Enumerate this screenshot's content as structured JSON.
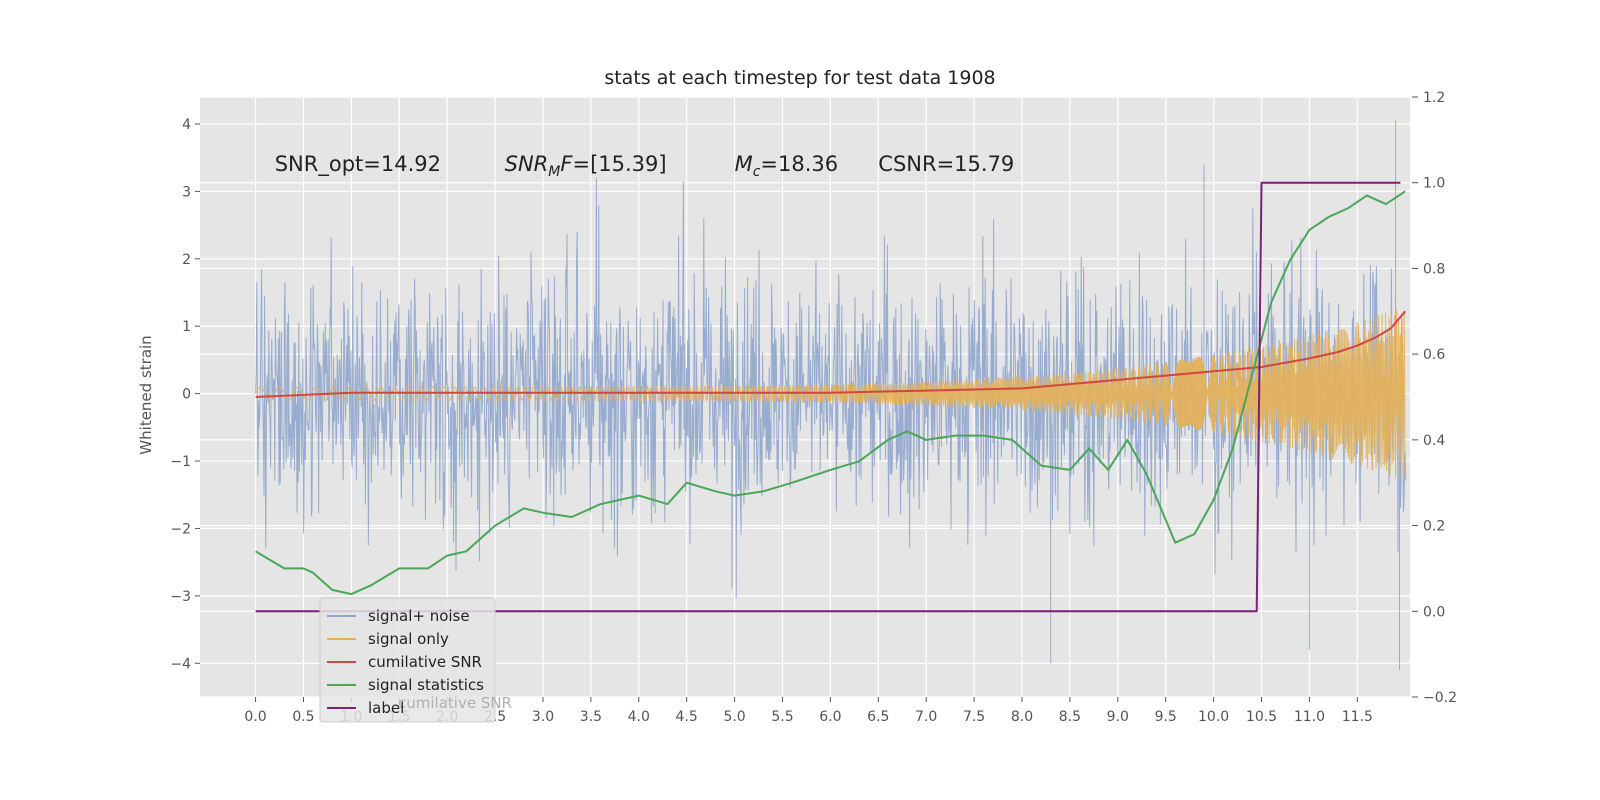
{
  "chart_data": {
    "type": "line",
    "title": "stats at each timestep for test data 1908",
    "xlabel": "",
    "ylabel": "Whitened strain",
    "y2label": "",
    "xlim": [
      -0.58,
      12.05
    ],
    "ylim": [
      -4.5,
      4.4
    ],
    "y2lim": [
      -0.2,
      1.2
    ],
    "x_ticks": [
      0.0,
      0.5,
      1.0,
      1.5,
      2.0,
      2.5,
      3.0,
      3.5,
      4.0,
      4.5,
      5.0,
      5.5,
      6.0,
      6.5,
      7.0,
      7.5,
      8.0,
      8.5,
      9.0,
      9.5,
      10.0,
      10.5,
      11.0,
      11.5
    ],
    "x_tick_labels": [
      "0.0",
      "0.5",
      "1.0",
      "1.5",
      "2.0",
      "2.5",
      "3.0",
      "3.5",
      "4.0",
      "4.5",
      "5.0",
      "5.5",
      "6.0",
      "6.5",
      "7.0",
      "7.5",
      "8.0",
      "8.5",
      "9.0",
      "9.5",
      "10.0",
      "10.5",
      "11.0",
      "11.5"
    ],
    "y_ticks": [
      4,
      3,
      2,
      1,
      0,
      -1,
      -2,
      -3,
      -4
    ],
    "y_tick_labels": [
      "4",
      "3",
      "2",
      "1",
      "0",
      "−1",
      "−2",
      "−3",
      "−4"
    ],
    "y2_ticks": [
      1.2,
      1.0,
      0.8,
      0.6,
      0.4,
      0.2,
      0.0,
      -0.2
    ],
    "y2_tick_labels": [
      "1.2",
      "1.0",
      "0.8",
      "0.6",
      "0.4",
      "0.2",
      "0.0",
      "−0.2"
    ],
    "grid": true,
    "legend_position": "lower-left",
    "annotations": [
      {
        "text": "SNR_opt=14.92",
        "x": 0.2,
        "y": 3.3
      },
      {
        "text": "SNR_MF=[15.39]",
        "x": 2.6,
        "y": 3.3,
        "math": "SNR",
        "sub": "M",
        "rest": "F=[15.39]"
      },
      {
        "text": "M_c=18.36",
        "x": 5.0,
        "y": 3.3,
        "math": "M",
        "sub": "c",
        "rest": "=18.36"
      },
      {
        "text": "CSNR=15.79",
        "x": 6.5,
        "y": 3.3
      }
    ],
    "ghost_legend_text": "cumilative SNR",
    "series": [
      {
        "name": "signal+ noise",
        "color": "#8fa5cc",
        "axis": "left",
        "kind": "noise",
        "x_range": [
          0.0,
          12.0
        ],
        "typical_range": [
          -2.3,
          2.6
        ],
        "extreme_peak": 4.05,
        "extreme_trough": -4.1
      },
      {
        "name": "signal only",
        "color": "#e3b15c",
        "axis": "left",
        "kind": "chirp",
        "x_range": [
          0.0,
          12.0
        ],
        "amplitude_start": 0.1,
        "amplitude_end": 1.3
      },
      {
        "name": "cumilative SNR",
        "color": "#d0473f",
        "axis": "right",
        "x": [
          0.0,
          1.0,
          4.0,
          6.0,
          7.0,
          8.0,
          8.5,
          9.0,
          9.5,
          10.0,
          10.5,
          11.0,
          11.3,
          11.5,
          11.7,
          11.85,
          12.0
        ],
        "y": [
          0.5,
          0.51,
          0.51,
          0.51,
          0.515,
          0.52,
          0.53,
          0.54,
          0.55,
          0.56,
          0.57,
          0.59,
          0.605,
          0.62,
          0.64,
          0.66,
          0.7
        ]
      },
      {
        "name": "signal statistics",
        "color": "#4aa658",
        "axis": "right",
        "x": [
          0.0,
          0.15,
          0.3,
          0.5,
          0.6,
          0.8,
          1.0,
          1.2,
          1.5,
          1.8,
          2.0,
          2.2,
          2.5,
          2.8,
          3.0,
          3.3,
          3.6,
          4.0,
          4.3,
          4.5,
          4.8,
          5.0,
          5.3,
          5.6,
          6.0,
          6.3,
          6.6,
          6.8,
          7.0,
          7.3,
          7.6,
          7.9,
          8.2,
          8.5,
          8.7,
          8.9,
          9.1,
          9.3,
          9.6,
          9.8,
          10.0,
          10.2,
          10.4,
          10.6,
          10.8,
          11.0,
          11.2,
          11.4,
          11.6,
          11.8,
          12.0
        ],
        "y": [
          0.14,
          0.12,
          0.1,
          0.1,
          0.09,
          0.05,
          0.04,
          0.06,
          0.1,
          0.1,
          0.13,
          0.14,
          0.2,
          0.24,
          0.23,
          0.22,
          0.25,
          0.27,
          0.25,
          0.3,
          0.28,
          0.27,
          0.28,
          0.3,
          0.33,
          0.35,
          0.4,
          0.42,
          0.4,
          0.41,
          0.41,
          0.4,
          0.34,
          0.33,
          0.38,
          0.33,
          0.4,
          0.32,
          0.16,
          0.18,
          0.26,
          0.38,
          0.55,
          0.72,
          0.82,
          0.89,
          0.92,
          0.94,
          0.97,
          0.95,
          0.98
        ]
      },
      {
        "name": "label",
        "color": "#7b1f78",
        "axis": "right",
        "x": [
          0.0,
          10.45,
          10.5,
          11.95
        ],
        "y": [
          0.0,
          0.0,
          1.0,
          1.0
        ]
      }
    ]
  }
}
